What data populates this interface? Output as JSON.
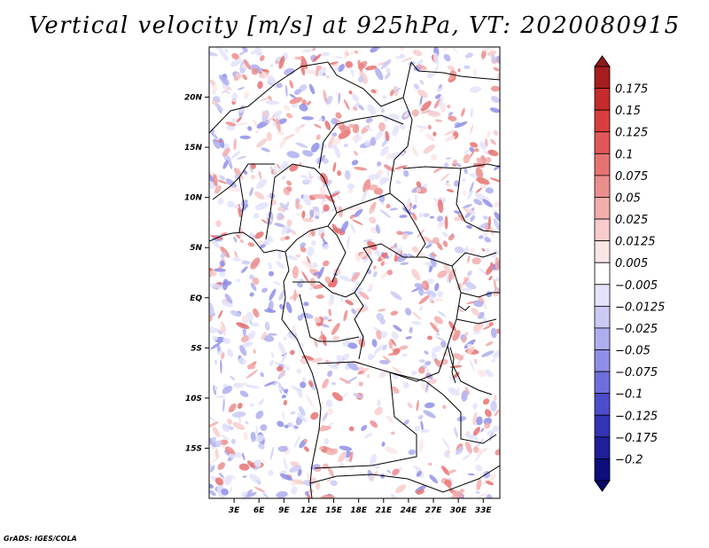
{
  "chart_data": {
    "type": "heatmap",
    "title": "Vertical velocity [m/s] at 925hPa, VT: 2020080915",
    "variable": "Vertical velocity",
    "units": "m/s",
    "level": "925hPa",
    "valid_time": "2020080915",
    "lon_range": [
      0,
      35
    ],
    "lat_range": [
      -20,
      25
    ],
    "x_ticks": [
      "3E",
      "6E",
      "9E",
      "12E",
      "15E",
      "18E",
      "21E",
      "24E",
      "27E",
      "30E",
      "33E"
    ],
    "x_tick_values": [
      3,
      6,
      9,
      12,
      15,
      18,
      21,
      24,
      27,
      30,
      33
    ],
    "y_ticks": [
      "20N",
      "15N",
      "10N",
      "5N",
      "EQ",
      "5S",
      "10S",
      "15S"
    ],
    "y_tick_values": [
      20,
      15,
      10,
      5,
      0,
      -5,
      -10,
      -15
    ],
    "colorbar_labels": [
      "0.175",
      "0.15",
      "0.125",
      "0.1",
      "0.075",
      "0.05",
      "0.025",
      "0.0125",
      "0.005",
      "−0.005",
      "−0.0125",
      "−0.025",
      "−0.05",
      "−0.075",
      "−0.1",
      "−0.125",
      "−0.175",
      "−0.2"
    ],
    "colorbar_colors": [
      "#a51d1d",
      "#c42b2b",
      "#d93e3e",
      "#e05757",
      "#e77272",
      "#ec8d8d",
      "#f3adad",
      "#f8cccc",
      "#fbe6e6",
      "#ffffff",
      "#e3e3fb",
      "#cacaf5",
      "#aeaeef",
      "#8f8fe8",
      "#6e6edc",
      "#4d4dcc",
      "#3333b5",
      "#1f1f9a",
      "#0d0d7d"
    ],
    "colorbar_top_color": "#8b1a1a",
    "colorbar_bottom_color": "#0a0a6a",
    "grid": false,
    "legend_position": "right"
  },
  "credit": "GrADS: IGES/COLA"
}
